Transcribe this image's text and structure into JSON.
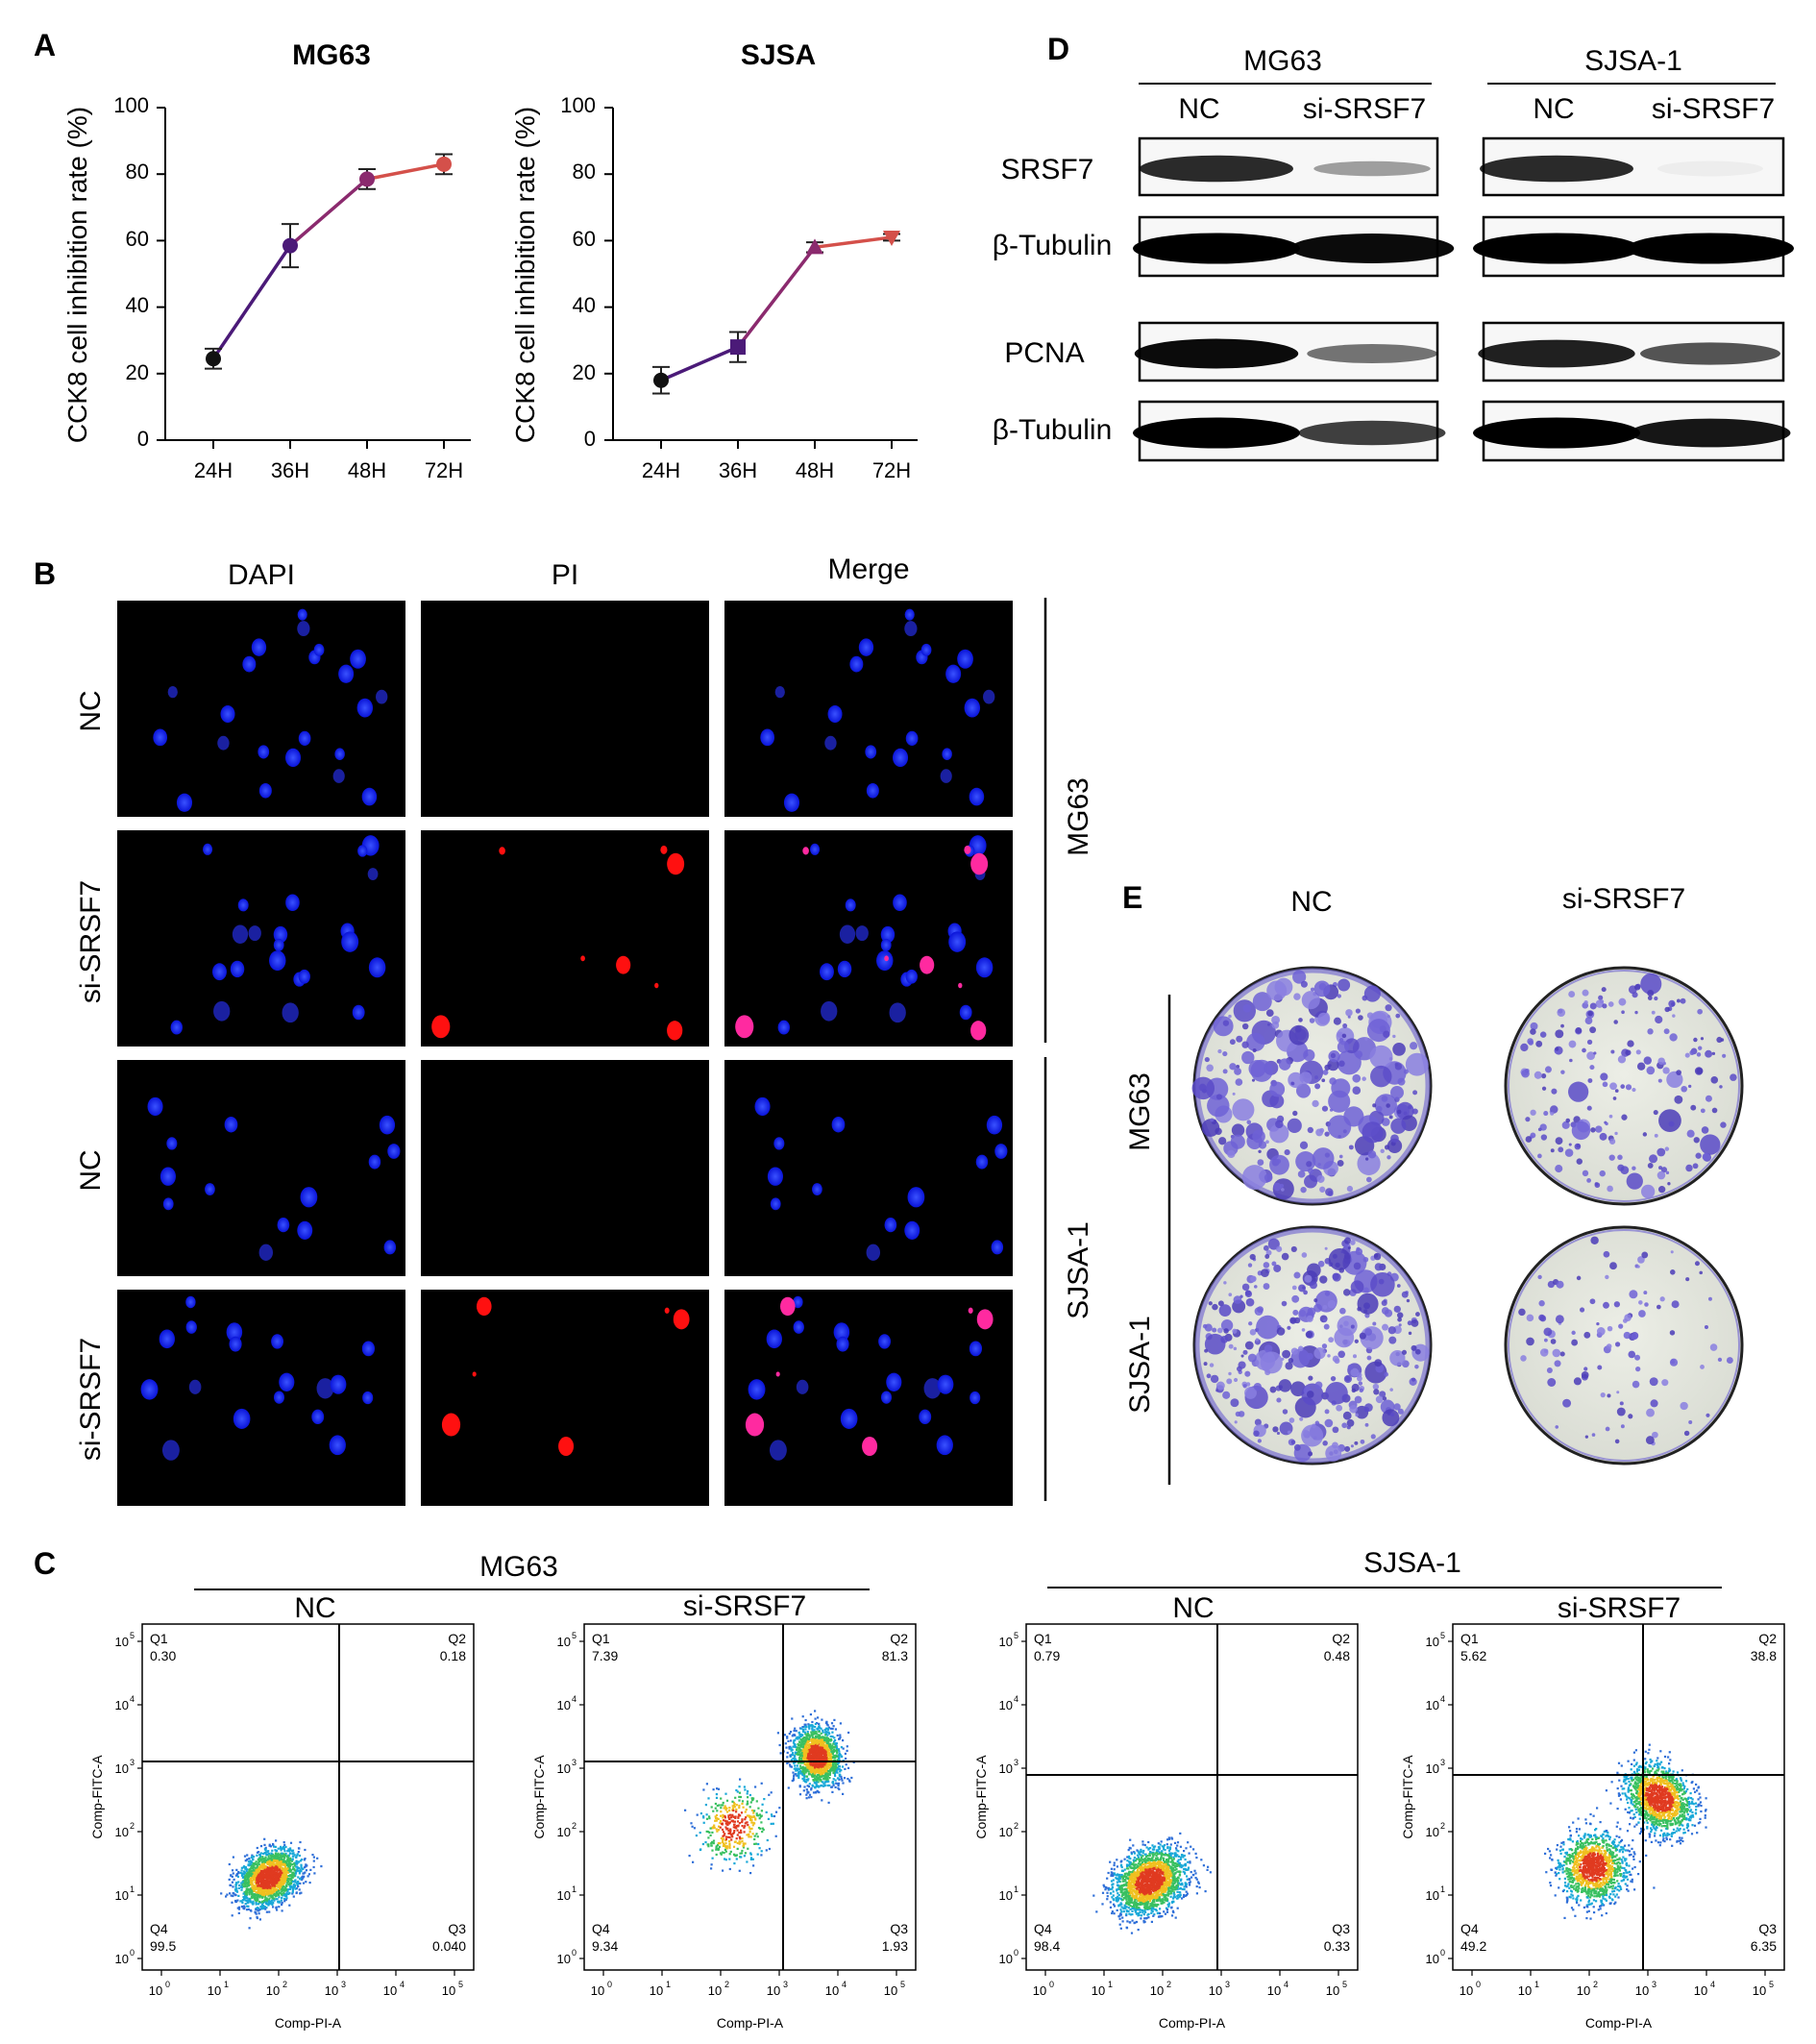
{
  "panels": {
    "A": {
      "letter": "A",
      "ylabel": "CCK8 cell inhibition rate (%)",
      "charts": [
        {
          "title": "MG63",
          "xticks": [
            "24H",
            "36H",
            "48H",
            "72H"
          ],
          "yticks": [
            "0",
            "20",
            "40",
            "60",
            "80",
            "100"
          ]
        },
        {
          "title": "SJSA",
          "xticks": [
            "24H",
            "36H",
            "48H",
            "72H"
          ],
          "yticks": [
            "0",
            "20",
            "40",
            "60",
            "80",
            "100"
          ]
        }
      ]
    },
    "B": {
      "letter": "B",
      "columns": [
        "DAPI",
        "PI",
        "Merge"
      ],
      "rows": [
        "NC",
        "si-SRSF7",
        "NC",
        "si-SRSF7"
      ],
      "groups": [
        "MG63",
        "SJSA-1"
      ]
    },
    "C": {
      "letter": "C",
      "groups": [
        "MG63",
        "SJSA-1"
      ],
      "conditions": [
        "NC",
        "si-SRSF7",
        "NC",
        "si-SRSF7"
      ],
      "xlabel": "Comp-PI-A",
      "ylabel": "Comp-FITC-A",
      "quadrant_names": [
        "Q1",
        "Q2",
        "Q3",
        "Q4"
      ],
      "decades": [
        "0",
        "1",
        "2",
        "3",
        "4",
        "5"
      ],
      "plots": [
        {
          "q1": "0.30",
          "q2": "0.18",
          "q3": "0.040",
          "q4": "99.5"
        },
        {
          "q1": "7.39",
          "q2": "81.3",
          "q3": "1.93",
          "q4": "9.34"
        },
        {
          "q1": "0.79",
          "q2": "0.48",
          "q3": "0.33",
          "q4": "98.4"
        },
        {
          "q1": "5.62",
          "q2": "38.8",
          "q3": "6.35",
          "q4": "49.2"
        }
      ]
    },
    "D": {
      "letter": "D",
      "groups": [
        "MG63",
        "SJSA-1"
      ],
      "lanes": [
        "NC",
        "si-SRSF7"
      ],
      "proteins": [
        "SRSF7",
        "β-Tubulin",
        "PCNA",
        "β-Tubulin"
      ],
      "relative_intensity": {
        "MG63": [
          [
            0.8,
            0.25
          ],
          [
            1.0,
            0.95
          ],
          [
            0.95,
            0.45
          ],
          [
            1.0,
            0.7
          ]
        ],
        "SJSA-1": [
          [
            0.8,
            0.05
          ],
          [
            1.0,
            1.0
          ],
          [
            0.85,
            0.6
          ],
          [
            1.0,
            0.9
          ]
        ]
      }
    },
    "E": {
      "letter": "E",
      "columns": [
        "NC",
        "si-SRSF7"
      ],
      "rows": [
        "MG63",
        "SJSA-1"
      ]
    }
  },
  "chart_data": [
    {
      "type": "line",
      "title": "MG63",
      "xlabel": "",
      "ylabel": "CCK8 cell inhibition rate (%)",
      "categories": [
        "24H",
        "36H",
        "48H",
        "72H"
      ],
      "values": [
        24.5,
        58.5,
        78.5,
        83
      ],
      "errors": [
        3,
        6.5,
        3,
        3
      ],
      "ylim": [
        0,
        100
      ],
      "colors": [
        "#111111",
        "#4b1a78",
        "#8b2a6e",
        "#d4504a"
      ]
    },
    {
      "type": "line",
      "title": "SJSA",
      "xlabel": "",
      "ylabel": "CCK8 cell inhibition rate (%)",
      "categories": [
        "24H",
        "36H",
        "48H",
        "72H"
      ],
      "values": [
        18,
        28,
        58,
        61
      ],
      "errors": [
        4,
        4.5,
        1.5,
        1
      ],
      "ylim": [
        0,
        100
      ],
      "colors": [
        "#111111",
        "#4b1a78",
        "#8b2a6e",
        "#d4504a"
      ]
    }
  ]
}
